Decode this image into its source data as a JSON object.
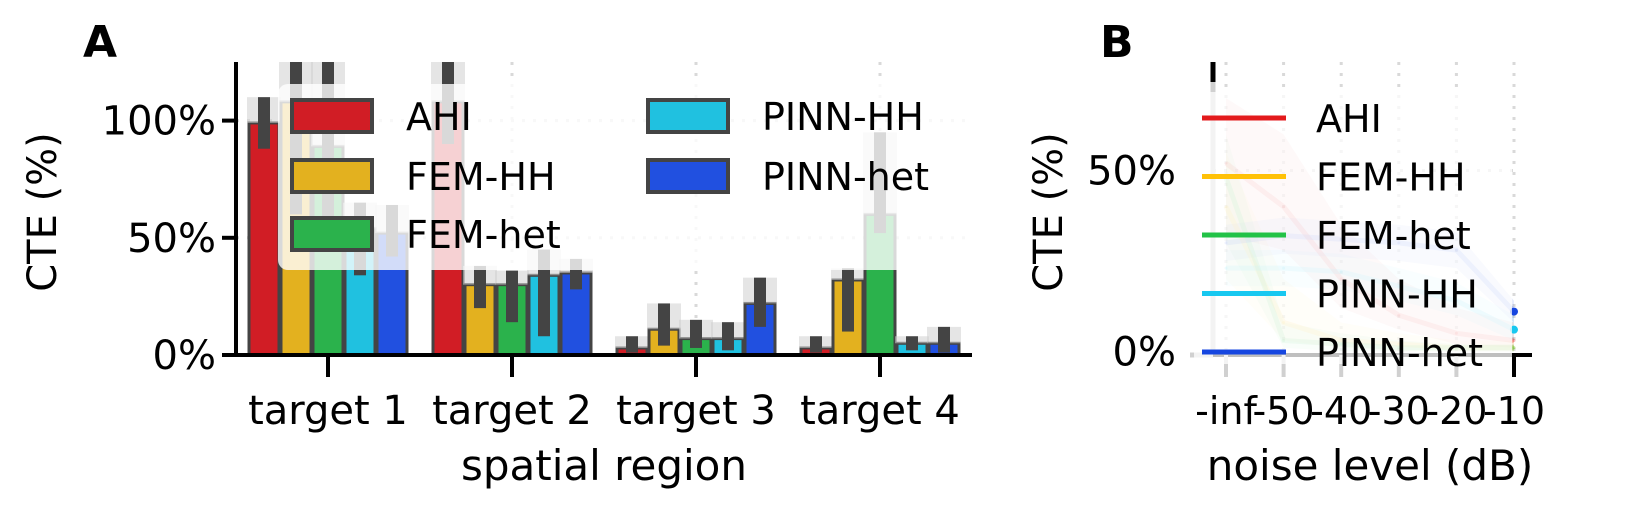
{
  "colors": {
    "AHI": "#d11d25",
    "FEM-HH": "#e3b11f",
    "FEM-het": "#2bb24c",
    "PINN-HH": "#20c1e0",
    "PINN-het": "#2150e0",
    "bar_edge": "#444444",
    "grid": "#d9d9d9",
    "line_AHI": "#e31a1c",
    "line_FEM-HH": "#ffc107",
    "line_FEM-het": "#22c247",
    "line_PINN-HH": "#18c8f0",
    "line_PINN-het": "#1646e0"
  },
  "chart_data": [
    {
      "panel_label": "A",
      "type": "bar",
      "xlabel": "spatial region",
      "ylabel": "CTE (%)",
      "ylim": [
        0,
        125
      ],
      "yticks": [
        0,
        50,
        100
      ],
      "ytick_labels": [
        "0%",
        "50%",
        "100%"
      ],
      "categories": [
        "target 1",
        "target 2",
        "target 3",
        "target 4"
      ],
      "legend_placement": "upper-left, two columns",
      "grid": true,
      "series": [
        {
          "name": "AHI",
          "values": [
            99,
            108,
            3,
            3
          ],
          "err_low": [
            88,
            90,
            1,
            1
          ],
          "err_high": [
            110,
            125,
            8,
            8
          ]
        },
        {
          "name": "FEM-HH",
          "values": [
            108,
            30,
            11,
            32
          ],
          "err_low": [
            60,
            20,
            4,
            10
          ],
          "err_high": [
            125,
            38,
            22,
            37
          ]
        },
        {
          "name": "FEM-het",
          "values": [
            89,
            30,
            7,
            60
          ],
          "err_low": [
            50,
            14,
            3,
            52
          ],
          "err_high": [
            125,
            36,
            15,
            95
          ]
        },
        {
          "name": "PINN-HH",
          "values": [
            54,
            34,
            7,
            5
          ],
          "err_low": [
            34,
            8,
            2,
            2
          ],
          "err_high": [
            65,
            45,
            14,
            8
          ]
        },
        {
          "name": "PINN-het",
          "values": [
            52,
            35,
            22,
            5
          ],
          "err_low": [
            42,
            28,
            12,
            1
          ],
          "err_high": [
            64,
            41,
            33,
            12
          ]
        }
      ]
    },
    {
      "panel_label": "B",
      "type": "line",
      "xlabel": "noise level (dB)",
      "ylabel": "CTE (%)",
      "x": [
        "-inf",
        "-50",
        "-40",
        "-30",
        "-20",
        "-10"
      ],
      "xtick_labels": [
        "-inf",
        "-50",
        "-40",
        "-30",
        "-20",
        "-10"
      ],
      "ylim": [
        -1,
        80
      ],
      "yticks": [
        0,
        50
      ],
      "ytick_labels": [
        "0%",
        "50%"
      ],
      "legend_placement": "left",
      "grid": true,
      "series": [
        {
          "name": "AHI",
          "values": [
            52,
            40,
            20,
            10,
            5,
            3
          ],
          "band_low": [
            32,
            28,
            12,
            6,
            2,
            1
          ],
          "band_high": [
            70,
            60,
            35,
            20,
            12,
            8
          ]
        },
        {
          "name": "FEM-HH",
          "values": [
            40,
            8,
            3,
            2,
            1,
            1
          ],
          "band_low": [
            20,
            3,
            1,
            0,
            0,
            0
          ],
          "band_high": [
            55,
            20,
            8,
            5,
            3,
            3
          ]
        },
        {
          "name": "FEM-het",
          "values": [
            48,
            3,
            2,
            1,
            1,
            1
          ],
          "band_low": [
            30,
            1,
            0,
            0,
            0,
            0
          ],
          "band_high": [
            60,
            8,
            5,
            3,
            2,
            2
          ]
        },
        {
          "name": "PINN-HH",
          "values": [
            23,
            23,
            22,
            18,
            14,
            6
          ],
          "band_low": [
            18,
            18,
            17,
            14,
            10,
            3
          ],
          "band_high": [
            28,
            28,
            27,
            23,
            19,
            10
          ]
        },
        {
          "name": "PINN-het",
          "values": [
            30,
            32,
            31,
            30,
            28,
            11
          ],
          "band_low": [
            25,
            27,
            26,
            25,
            23,
            8
          ],
          "band_high": [
            35,
            37,
            36,
            35,
            33,
            14
          ]
        }
      ]
    }
  ]
}
